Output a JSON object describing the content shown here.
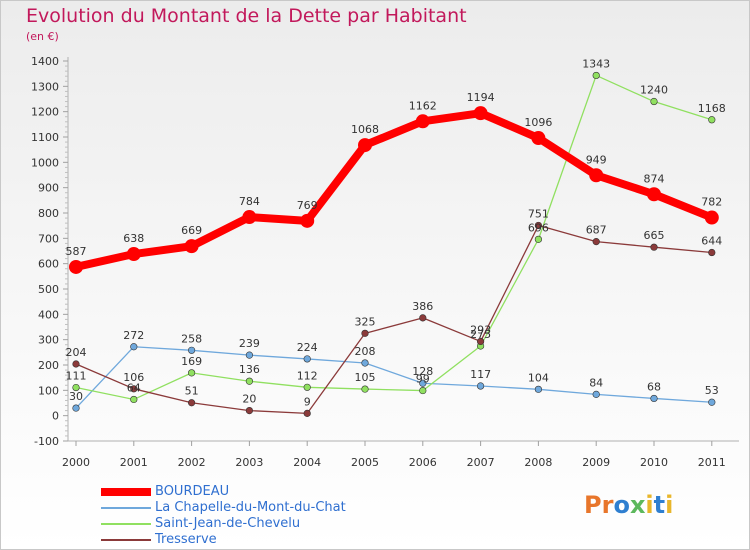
{
  "title": "Evolution du Montant de la Dette par Habitant",
  "unit": "(en €)",
  "logo": {
    "letters": [
      "P",
      "r",
      "o",
      "x",
      "i",
      "t",
      "i"
    ],
    "colors": [
      "#e8762b",
      "#e8762b",
      "#2f7fd0",
      "#5cb85c",
      "#e8b62b",
      "#2f7fd0",
      "#e8b62b"
    ]
  },
  "chart_data": {
    "type": "line",
    "x": [
      "2000",
      "2001",
      "2002",
      "2003",
      "2004",
      "2005",
      "2006",
      "2007",
      "2008",
      "2009",
      "2010",
      "2011"
    ],
    "ylim": [
      -100,
      1400
    ],
    "yticks": [
      -100,
      0,
      100,
      200,
      300,
      400,
      500,
      600,
      700,
      800,
      900,
      1000,
      1100,
      1200,
      1300,
      1400
    ],
    "grid": false,
    "legend_position": "bottom-left",
    "series": [
      {
        "name": "BOURDEAU",
        "color": "#ff0000",
        "values": [
          587,
          638,
          669,
          784,
          769,
          1068,
          1162,
          1194,
          1096,
          949,
          874,
          782
        ]
      },
      {
        "name": "La Chapelle-du-Mont-du-Chat",
        "color": "#6fa8dc",
        "values": [
          30,
          272,
          258,
          239,
          224,
          208,
          128,
          117,
          104,
          84,
          68,
          53
        ]
      },
      {
        "name": "Saint-Jean-de-Chevelu",
        "color": "#90e060",
        "values": [
          111,
          64,
          169,
          136,
          112,
          105,
          99,
          275,
          696,
          1343,
          1240,
          1168
        ]
      },
      {
        "name": "Tresserve",
        "color": "#8b3a3a",
        "values": [
          204,
          106,
          51,
          20,
          9,
          325,
          386,
          293,
          751,
          687,
          665,
          644
        ]
      }
    ]
  }
}
